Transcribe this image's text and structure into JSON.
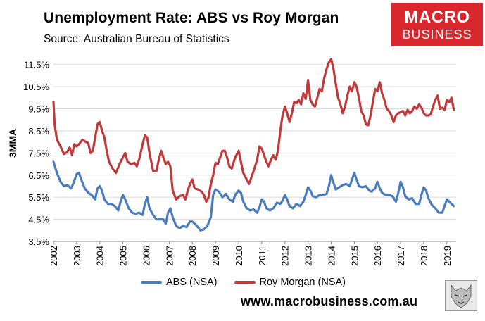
{
  "header": {
    "title": "Unemployment Rate: ABS vs Roy Morgan",
    "subtitle": "Source: Australian Bureau of Statistics"
  },
  "logo": {
    "line1": "MACRO",
    "line2": "BUSINESS"
  },
  "footer": {
    "url": "www.macrobusiness.com.au"
  },
  "colors": {
    "abs": "#4a7dbf",
    "roy_morgan": "#c0393b",
    "logo_bg": "#d9272e"
  },
  "chart_data": {
    "type": "line",
    "title": "Unemployment Rate: ABS vs Roy Morgan",
    "ylabel": "3MMA",
    "xlabel": "",
    "ylim": [
      3.5,
      12.0
    ],
    "xlim": [
      2002.0,
      2019.4
    ],
    "y_ticks": [
      "3.5%",
      "4.5%",
      "5.5%",
      "6.5%",
      "7.5%",
      "8.5%",
      "9.5%",
      "10.5%",
      "11.5%"
    ],
    "x_ticks": [
      "2002",
      "2003",
      "2004",
      "2005",
      "2006",
      "2007",
      "2008",
      "2009",
      "2010",
      "2011",
      "2012",
      "2013",
      "2014",
      "2015",
      "2016",
      "2017",
      "2018",
      "2019"
    ],
    "grid": "horizontal",
    "legend_position": "bottom",
    "series": [
      {
        "name": "ABS (NSA)",
        "color": "#4a7dbf",
        "points": [
          [
            2002.0,
            7.1
          ],
          [
            2002.15,
            6.6
          ],
          [
            2002.3,
            6.2
          ],
          [
            2002.45,
            6.0
          ],
          [
            2002.6,
            6.05
          ],
          [
            2002.75,
            5.9
          ],
          [
            2002.85,
            6.1
          ],
          [
            2003.0,
            6.55
          ],
          [
            2003.1,
            6.6
          ],
          [
            2003.2,
            6.3
          ],
          [
            2003.35,
            5.9
          ],
          [
            2003.5,
            5.7
          ],
          [
            2003.65,
            5.6
          ],
          [
            2003.8,
            5.4
          ],
          [
            2003.9,
            5.9
          ],
          [
            2004.0,
            6.0
          ],
          [
            2004.1,
            5.8
          ],
          [
            2004.2,
            5.4
          ],
          [
            2004.35,
            5.2
          ],
          [
            2004.5,
            5.2
          ],
          [
            2004.65,
            5.1
          ],
          [
            2004.8,
            4.9
          ],
          [
            2004.9,
            5.3
          ],
          [
            2005.0,
            5.6
          ],
          [
            2005.1,
            5.4
          ],
          [
            2005.25,
            5.0
          ],
          [
            2005.4,
            4.8
          ],
          [
            2005.55,
            4.75
          ],
          [
            2005.7,
            4.8
          ],
          [
            2005.85,
            4.7
          ],
          [
            2005.95,
            5.2
          ],
          [
            2006.05,
            5.5
          ],
          [
            2006.15,
            5.0
          ],
          [
            2006.3,
            4.7
          ],
          [
            2006.45,
            4.5
          ],
          [
            2006.6,
            4.5
          ],
          [
            2006.75,
            4.5
          ],
          [
            2006.85,
            4.3
          ],
          [
            2006.95,
            4.8
          ],
          [
            2007.05,
            5.0
          ],
          [
            2007.15,
            4.6
          ],
          [
            2007.3,
            4.2
          ],
          [
            2007.45,
            4.1
          ],
          [
            2007.6,
            4.2
          ],
          [
            2007.75,
            4.15
          ],
          [
            2007.9,
            4.4
          ],
          [
            2008.0,
            4.4
          ],
          [
            2008.1,
            4.3
          ],
          [
            2008.2,
            4.2
          ],
          [
            2008.35,
            4.0
          ],
          [
            2008.5,
            4.05
          ],
          [
            2008.65,
            4.2
          ],
          [
            2008.8,
            4.6
          ],
          [
            2008.9,
            5.6
          ],
          [
            2009.0,
            5.85
          ],
          [
            2009.15,
            5.75
          ],
          [
            2009.3,
            5.5
          ],
          [
            2009.45,
            5.65
          ],
          [
            2009.6,
            5.4
          ],
          [
            2009.75,
            5.3
          ],
          [
            2009.85,
            5.6
          ],
          [
            2010.0,
            5.8
          ],
          [
            2010.1,
            5.7
          ],
          [
            2010.2,
            5.3
          ],
          [
            2010.35,
            5.0
          ],
          [
            2010.5,
            4.9
          ],
          [
            2010.65,
            4.95
          ],
          [
            2010.8,
            4.8
          ],
          [
            2010.9,
            5.05
          ],
          [
            2011.0,
            5.4
          ],
          [
            2011.1,
            5.3
          ],
          [
            2011.2,
            5.0
          ],
          [
            2011.35,
            4.9
          ],
          [
            2011.5,
            5.0
          ],
          [
            2011.65,
            5.25
          ],
          [
            2011.8,
            5.2
          ],
          [
            2011.9,
            5.35
          ],
          [
            2012.0,
            5.6
          ],
          [
            2012.1,
            5.4
          ],
          [
            2012.2,
            5.1
          ],
          [
            2012.35,
            5.0
          ],
          [
            2012.5,
            5.2
          ],
          [
            2012.65,
            5.1
          ],
          [
            2012.8,
            5.3
          ],
          [
            2012.9,
            5.6
          ],
          [
            2013.0,
            5.95
          ],
          [
            2013.1,
            5.8
          ],
          [
            2013.2,
            5.55
          ],
          [
            2013.35,
            5.5
          ],
          [
            2013.5,
            5.6
          ],
          [
            2013.65,
            5.6
          ],
          [
            2013.8,
            5.65
          ],
          [
            2013.9,
            6.0
          ],
          [
            2014.0,
            6.5
          ],
          [
            2014.1,
            6.15
          ],
          [
            2014.2,
            5.85
          ],
          [
            2014.35,
            5.95
          ],
          [
            2014.5,
            6.05
          ],
          [
            2014.65,
            6.1
          ],
          [
            2014.8,
            6.0
          ],
          [
            2014.9,
            6.3
          ],
          [
            2015.0,
            6.6
          ],
          [
            2015.1,
            6.3
          ],
          [
            2015.2,
            6.0
          ],
          [
            2015.35,
            5.95
          ],
          [
            2015.5,
            6.0
          ],
          [
            2015.65,
            5.8
          ],
          [
            2015.75,
            5.75
          ],
          [
            2015.9,
            5.9
          ],
          [
            2016.0,
            6.2
          ],
          [
            2016.1,
            5.9
          ],
          [
            2016.2,
            5.7
          ],
          [
            2016.35,
            5.6
          ],
          [
            2016.5,
            5.6
          ],
          [
            2016.65,
            5.55
          ],
          [
            2016.8,
            5.3
          ],
          [
            2016.9,
            5.7
          ],
          [
            2017.0,
            6.2
          ],
          [
            2017.1,
            5.95
          ],
          [
            2017.2,
            5.55
          ],
          [
            2017.35,
            5.4
          ],
          [
            2017.5,
            5.45
          ],
          [
            2017.65,
            5.2
          ],
          [
            2017.8,
            5.2
          ],
          [
            2017.9,
            5.6
          ],
          [
            2018.0,
            5.95
          ],
          [
            2018.1,
            5.8
          ],
          [
            2018.2,
            5.45
          ],
          [
            2018.35,
            5.15
          ],
          [
            2018.5,
            5.0
          ],
          [
            2018.65,
            4.8
          ],
          [
            2018.8,
            4.8
          ],
          [
            2018.9,
            5.1
          ],
          [
            2019.0,
            5.4
          ],
          [
            2019.1,
            5.3
          ],
          [
            2019.2,
            5.2
          ],
          [
            2019.3,
            5.1
          ]
        ]
      },
      {
        "name": "Roy Morgan (NSA)",
        "color": "#c0393b",
        "points": [
          [
            2002.0,
            9.8
          ],
          [
            2002.05,
            8.8
          ],
          [
            2002.15,
            8.1
          ],
          [
            2002.3,
            7.8
          ],
          [
            2002.45,
            7.45
          ],
          [
            2002.6,
            7.55
          ],
          [
            2002.7,
            7.75
          ],
          [
            2002.8,
            7.4
          ],
          [
            2002.9,
            7.9
          ],
          [
            2003.0,
            7.8
          ],
          [
            2003.1,
            7.9
          ],
          [
            2003.25,
            8.1
          ],
          [
            2003.4,
            8.0
          ],
          [
            2003.5,
            7.95
          ],
          [
            2003.6,
            7.5
          ],
          [
            2003.7,
            7.6
          ],
          [
            2003.8,
            8.2
          ],
          [
            2003.9,
            8.8
          ],
          [
            2004.0,
            8.9
          ],
          [
            2004.1,
            8.5
          ],
          [
            2004.2,
            8.2
          ],
          [
            2004.3,
            7.6
          ],
          [
            2004.4,
            7.1
          ],
          [
            2004.55,
            6.8
          ],
          [
            2004.7,
            6.6
          ],
          [
            2004.85,
            7.0
          ],
          [
            2005.0,
            7.3
          ],
          [
            2005.1,
            7.5
          ],
          [
            2005.2,
            7.1
          ],
          [
            2005.35,
            7.0
          ],
          [
            2005.5,
            7.05
          ],
          [
            2005.6,
            6.9
          ],
          [
            2005.7,
            7.2
          ],
          [
            2005.85,
            7.9
          ],
          [
            2005.95,
            8.3
          ],
          [
            2006.05,
            8.2
          ],
          [
            2006.15,
            7.5
          ],
          [
            2006.3,
            6.7
          ],
          [
            2006.45,
            6.7
          ],
          [
            2006.55,
            7.2
          ],
          [
            2006.65,
            7.6
          ],
          [
            2006.75,
            7.3
          ],
          [
            2006.85,
            7.0
          ],
          [
            2006.95,
            7.1
          ],
          [
            2007.05,
            6.9
          ],
          [
            2007.15,
            5.8
          ],
          [
            2007.3,
            5.4
          ],
          [
            2007.45,
            5.55
          ],
          [
            2007.6,
            5.6
          ],
          [
            2007.7,
            5.4
          ],
          [
            2007.8,
            5.8
          ],
          [
            2007.9,
            6.1
          ],
          [
            2008.0,
            6.3
          ],
          [
            2008.1,
            5.9
          ],
          [
            2008.25,
            5.85
          ],
          [
            2008.4,
            5.75
          ],
          [
            2008.5,
            5.6
          ],
          [
            2008.6,
            5.3
          ],
          [
            2008.7,
            5.5
          ],
          [
            2008.8,
            6.1
          ],
          [
            2008.9,
            6.5
          ],
          [
            2009.0,
            7.05
          ],
          [
            2009.1,
            7.0
          ],
          [
            2009.2,
            7.3
          ],
          [
            2009.3,
            7.6
          ],
          [
            2009.4,
            7.6
          ],
          [
            2009.5,
            7.3
          ],
          [
            2009.6,
            6.9
          ],
          [
            2009.7,
            6.8
          ],
          [
            2009.85,
            7.3
          ],
          [
            2010.0,
            7.6
          ],
          [
            2010.1,
            7.1
          ],
          [
            2010.2,
            6.6
          ],
          [
            2010.35,
            6.3
          ],
          [
            2010.45,
            6.1
          ],
          [
            2010.55,
            6.4
          ],
          [
            2010.65,
            6.7
          ],
          [
            2010.8,
            7.2
          ],
          [
            2010.9,
            7.8
          ],
          [
            2011.0,
            7.7
          ],
          [
            2011.1,
            7.4
          ],
          [
            2011.2,
            7.1
          ],
          [
            2011.3,
            6.9
          ],
          [
            2011.4,
            7.2
          ],
          [
            2011.5,
            7.4
          ],
          [
            2011.6,
            7.2
          ],
          [
            2011.7,
            7.6
          ],
          [
            2011.8,
            8.5
          ],
          [
            2011.9,
            9.2
          ],
          [
            2012.0,
            9.6
          ],
          [
            2012.1,
            9.3
          ],
          [
            2012.2,
            8.9
          ],
          [
            2012.3,
            9.3
          ],
          [
            2012.4,
            9.8
          ],
          [
            2012.5,
            9.75
          ],
          [
            2012.6,
            9.9
          ],
          [
            2012.7,
            9.7
          ],
          [
            2012.8,
            10.2
          ],
          [
            2012.9,
            9.95
          ],
          [
            2013.0,
            10.8
          ],
          [
            2013.1,
            9.9
          ],
          [
            2013.2,
            9.7
          ],
          [
            2013.3,
            9.6
          ],
          [
            2013.4,
            10.0
          ],
          [
            2013.5,
            10.4
          ],
          [
            2013.6,
            10.3
          ],
          [
            2013.7,
            10.9
          ],
          [
            2013.8,
            11.3
          ],
          [
            2013.9,
            11.6
          ],
          [
            2014.0,
            11.75
          ],
          [
            2014.1,
            11.3
          ],
          [
            2014.2,
            10.6
          ],
          [
            2014.3,
            10.0
          ],
          [
            2014.4,
            9.7
          ],
          [
            2014.5,
            9.3
          ],
          [
            2014.6,
            9.6
          ],
          [
            2014.7,
            10.1
          ],
          [
            2014.8,
            10.5
          ],
          [
            2014.9,
            10.3
          ],
          [
            2015.0,
            10.7
          ],
          [
            2015.1,
            10.5
          ],
          [
            2015.2,
            10.0
          ],
          [
            2015.3,
            9.4
          ],
          [
            2015.4,
            9.2
          ],
          [
            2015.5,
            8.8
          ],
          [
            2015.6,
            8.75
          ],
          [
            2015.7,
            9.2
          ],
          [
            2015.8,
            9.8
          ],
          [
            2015.9,
            10.4
          ],
          [
            2016.0,
            10.3
          ],
          [
            2016.1,
            10.7
          ],
          [
            2016.2,
            10.2
          ],
          [
            2016.3,
            9.9
          ],
          [
            2016.4,
            9.5
          ],
          [
            2016.5,
            9.4
          ],
          [
            2016.6,
            9.2
          ],
          [
            2016.7,
            8.9
          ],
          [
            2016.8,
            9.2
          ],
          [
            2016.9,
            9.3
          ],
          [
            2017.0,
            9.35
          ],
          [
            2017.1,
            9.4
          ],
          [
            2017.2,
            9.2
          ],
          [
            2017.3,
            9.45
          ],
          [
            2017.4,
            9.3
          ],
          [
            2017.5,
            9.4
          ],
          [
            2017.6,
            9.6
          ],
          [
            2017.7,
            9.5
          ],
          [
            2017.8,
            9.7
          ],
          [
            2017.9,
            9.55
          ],
          [
            2018.0,
            9.3
          ],
          [
            2018.1,
            9.2
          ],
          [
            2018.2,
            9.2
          ],
          [
            2018.3,
            9.25
          ],
          [
            2018.4,
            9.6
          ],
          [
            2018.5,
            9.9
          ],
          [
            2018.6,
            10.1
          ],
          [
            2018.7,
            9.5
          ],
          [
            2018.8,
            9.55
          ],
          [
            2018.9,
            9.45
          ],
          [
            2019.0,
            9.9
          ],
          [
            2019.1,
            9.8
          ],
          [
            2019.2,
            10.0
          ],
          [
            2019.3,
            9.45
          ]
        ]
      }
    ]
  }
}
